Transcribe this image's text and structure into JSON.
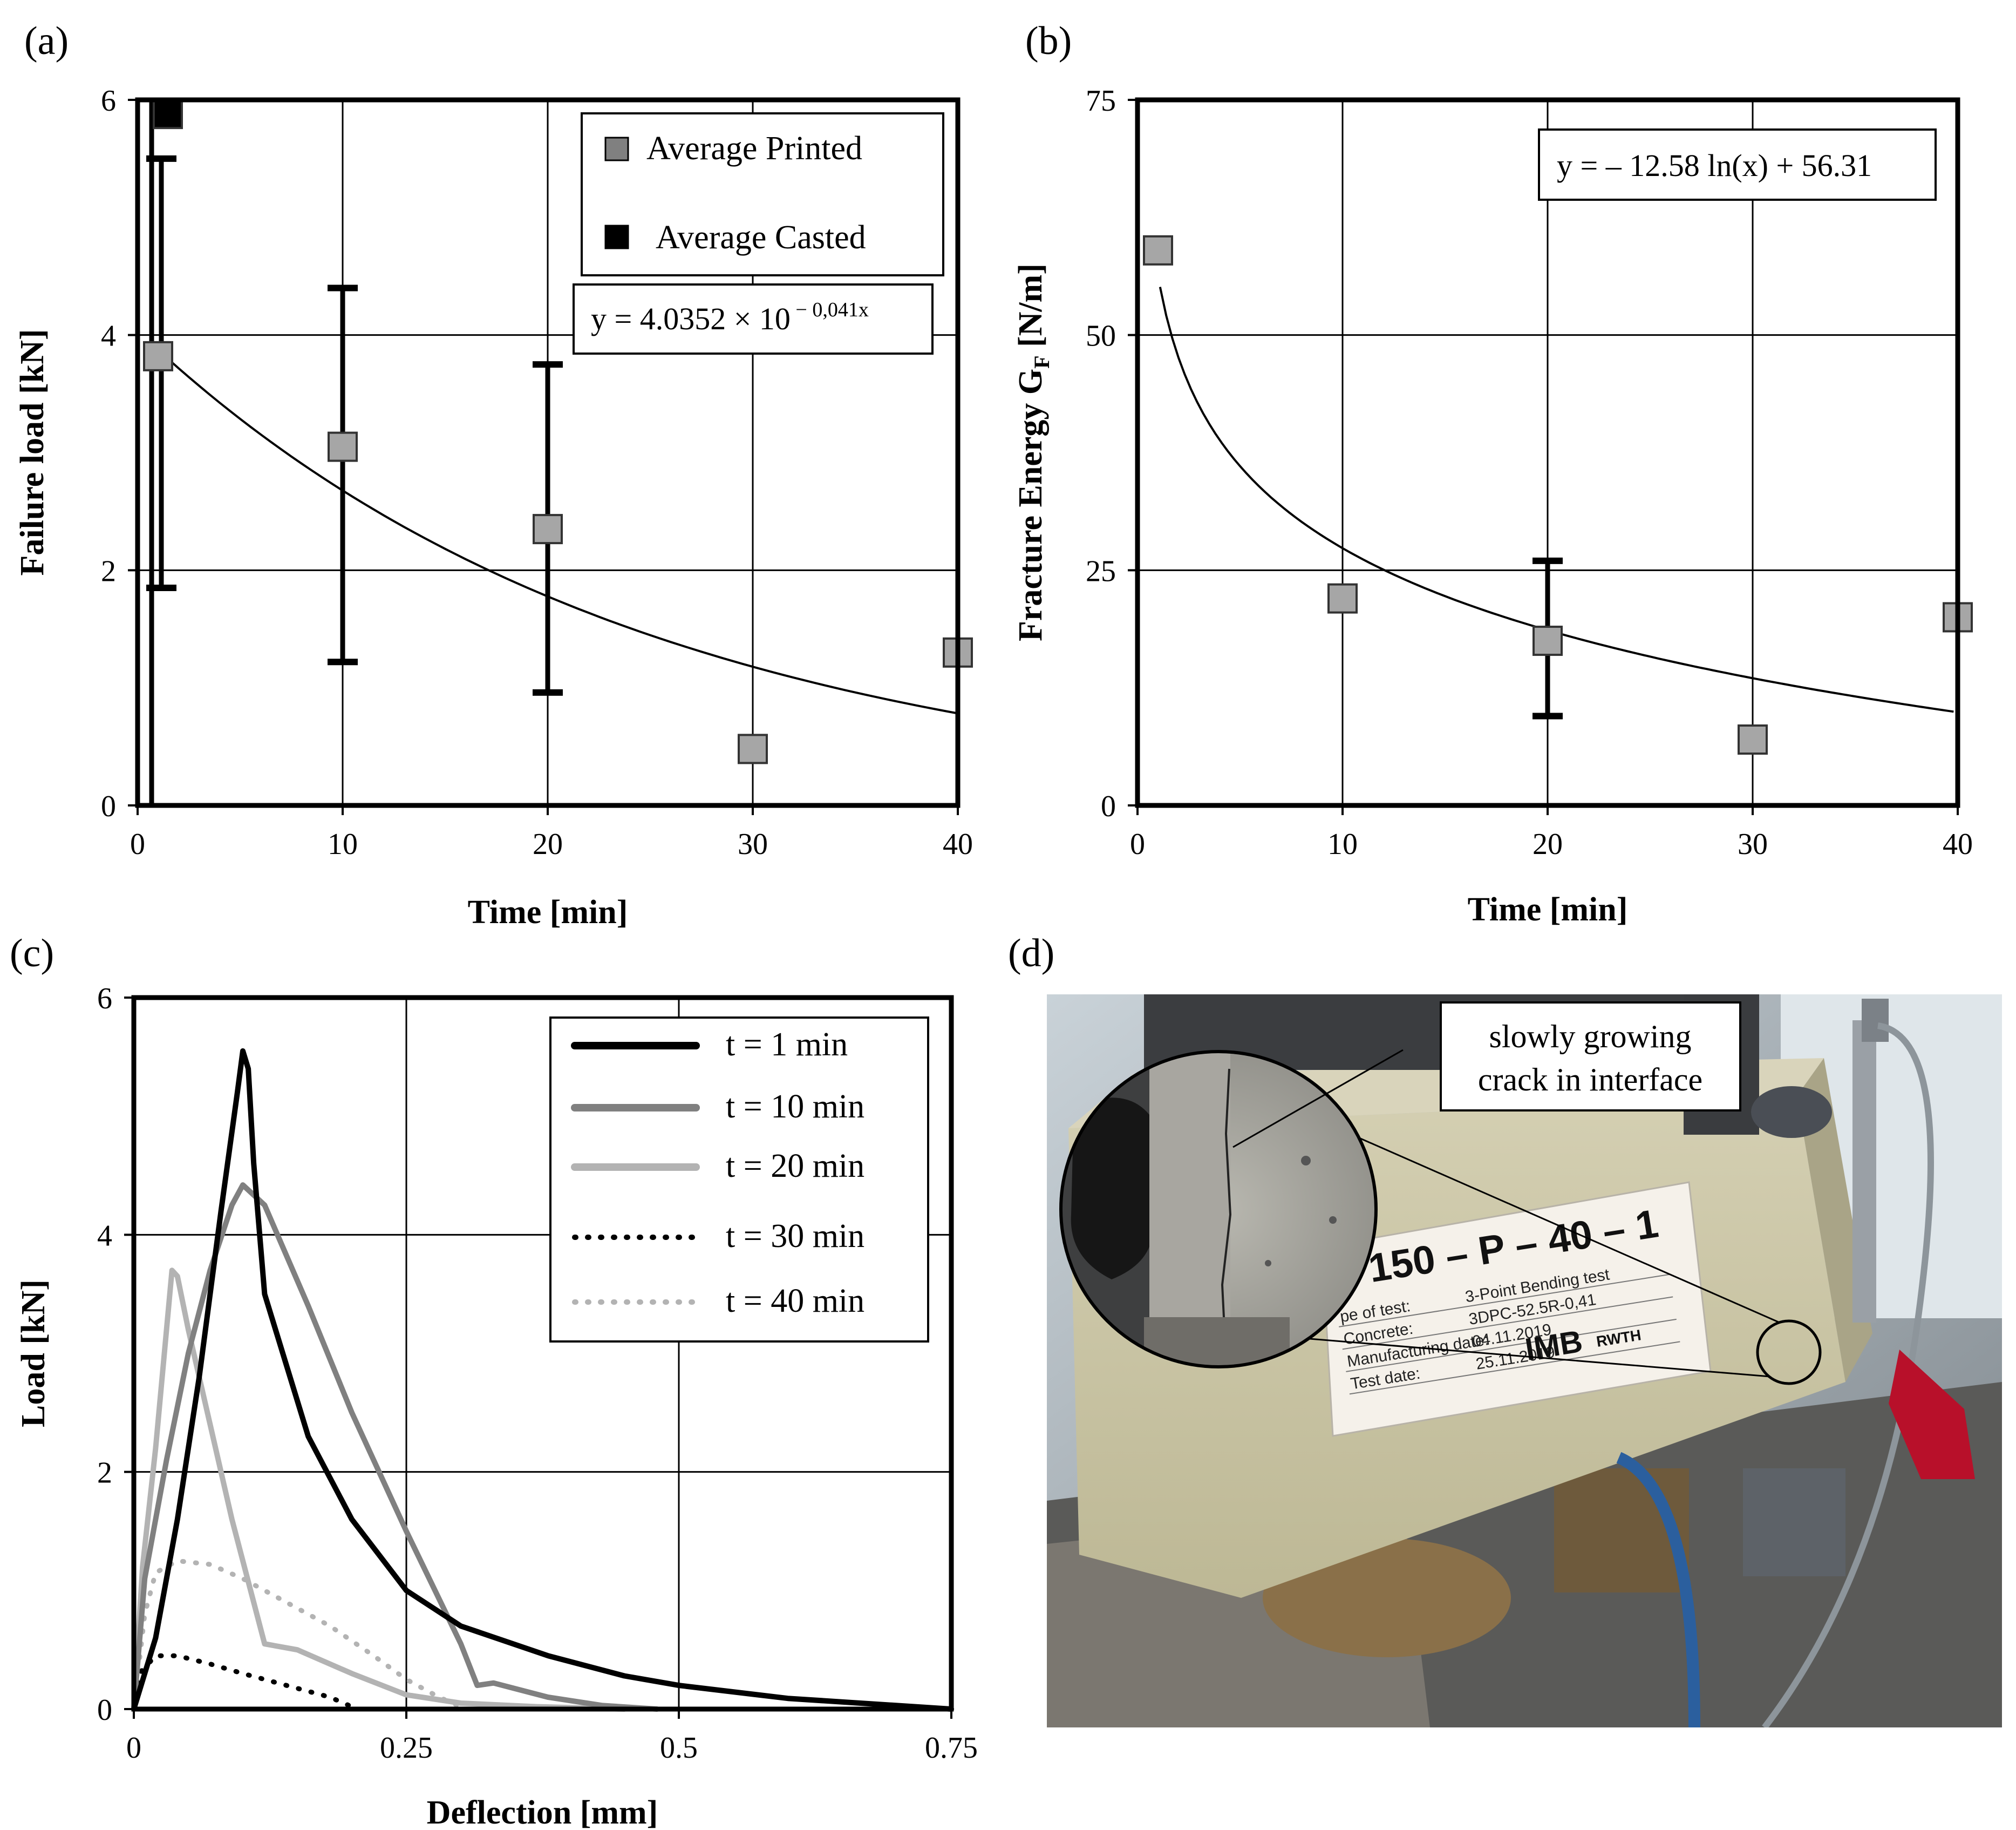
{
  "panel_labels": [
    "(a)",
    "(b)",
    "(c)",
    "(d)"
  ],
  "chart_data": [
    {
      "panel": "(a)",
      "type": "scatter",
      "xlabel": "Time [min]",
      "ylabel": "Failure load [kN]",
      "xlim": [
        0,
        40
      ],
      "ylim": [
        0,
        6
      ],
      "xticks": [
        "0",
        "10",
        "20",
        "30",
        "40"
      ],
      "yticks": [
        "0",
        "2",
        "4",
        "6"
      ],
      "grid": true,
      "legend_placement": "top-right",
      "series": [
        {
          "name": "Average Printed",
          "marker": "square",
          "color": "#a6a6a6",
          "points": [
            {
              "x": 1,
              "y": 3.82,
              "err_low": 1.85,
              "err_high": 5.5
            },
            {
              "x": 10,
              "y": 3.05,
              "err_low": 1.22,
              "err_high": 4.4
            },
            {
              "x": 20,
              "y": 2.35,
              "err_low": 0.96,
              "err_high": 3.75
            },
            {
              "x": 30,
              "y": 0.48
            },
            {
              "x": 40,
              "y": 1.3
            }
          ]
        },
        {
          "name": "Average Casted",
          "marker": "square",
          "color": "#000000",
          "points": [
            {
              "x": 1,
              "y": 5.88,
              "err_low": 0.0,
              "err_high": 6.0
            }
          ]
        }
      ],
      "trendline": {
        "equation_main": "y = 4.0352 × 10",
        "equation_exp": " − 0,041x",
        "a": 4.0352,
        "b": 0.041
      }
    },
    {
      "panel": "(b)",
      "type": "scatter",
      "xlabel": "Time [min]",
      "ylabel": "Fracture Energy G",
      "ylabel_sub": "F",
      "ylabel_unit": " [N/m]",
      "xlim": [
        0,
        40
      ],
      "ylim": [
        0,
        75
      ],
      "xticks": [
        "0",
        "10",
        "20",
        "30",
        "40"
      ],
      "yticks": [
        "0",
        "25",
        "50",
        "75"
      ],
      "grid": true,
      "series": [
        {
          "marker": "square",
          "color": "#a6a6a6",
          "points": [
            {
              "x": 1,
              "y": 59
            },
            {
              "x": 10,
              "y": 22
            },
            {
              "x": 20,
              "y": 17.5,
              "err_low": 9.5,
              "err_high": 26
            },
            {
              "x": 30,
              "y": 7
            },
            {
              "x": 40,
              "y": 20
            }
          ]
        }
      ],
      "trendline": {
        "equation": "y = – 12.58 ln(x) + 56.31",
        "a": -12.58,
        "b": 56.31
      }
    },
    {
      "panel": "(c)",
      "type": "line",
      "xlabel": "Deflection [mm]",
      "ylabel": "Load [kN]",
      "xlim": [
        0,
        0.75
      ],
      "ylim": [
        0,
        6
      ],
      "xticks": [
        "0",
        "0.25",
        "0.5",
        "0.75"
      ],
      "yticks": [
        "0",
        "2",
        "4",
        "6"
      ],
      "grid": true,
      "legend_placement": "top-right",
      "series": [
        {
          "name": "t = 1 min",
          "color": "#000000",
          "style": "solid",
          "points": [
            [
              0,
              0
            ],
            [
              0.02,
              0.6
            ],
            [
              0.04,
              1.6
            ],
            [
              0.06,
              2.8
            ],
            [
              0.08,
              4.2
            ],
            [
              0.095,
              5.2
            ],
            [
              0.1,
              5.55
            ],
            [
              0.105,
              5.4
            ],
            [
              0.11,
              4.6
            ],
            [
              0.12,
              3.5
            ],
            [
              0.14,
              2.9
            ],
            [
              0.16,
              2.3
            ],
            [
              0.2,
              1.6
            ],
            [
              0.25,
              1.0
            ],
            [
              0.3,
              0.7
            ],
            [
              0.38,
              0.45
            ],
            [
              0.45,
              0.28
            ],
            [
              0.5,
              0.2
            ],
            [
              0.6,
              0.09
            ],
            [
              0.7,
              0.03
            ],
            [
              0.75,
              0.0
            ]
          ]
        },
        {
          "name": "t = 10 min",
          "color": "#808080",
          "style": "solid",
          "points": [
            [
              0,
              0
            ],
            [
              0.01,
              1.1
            ],
            [
              0.03,
              2.1
            ],
            [
              0.05,
              3.0
            ],
            [
              0.07,
              3.7
            ],
            [
              0.09,
              4.25
            ],
            [
              0.1,
              4.42
            ],
            [
              0.12,
              4.25
            ],
            [
              0.16,
              3.4
            ],
            [
              0.2,
              2.5
            ],
            [
              0.25,
              1.5
            ],
            [
              0.3,
              0.55
            ],
            [
              0.315,
              0.2
            ],
            [
              0.33,
              0.22
            ],
            [
              0.38,
              0.1
            ],
            [
              0.43,
              0.03
            ],
            [
              0.48,
              0.0
            ]
          ]
        },
        {
          "name": "t = 20 min",
          "color": "#b3b3b3",
          "style": "solid",
          "points": [
            [
              0,
              0
            ],
            [
              0.008,
              1.2
            ],
            [
              0.02,
              2.2
            ],
            [
              0.03,
              3.2
            ],
            [
              0.035,
              3.7
            ],
            [
              0.04,
              3.65
            ],
            [
              0.05,
              3.2
            ],
            [
              0.07,
              2.4
            ],
            [
              0.09,
              1.6
            ],
            [
              0.11,
              0.9
            ],
            [
              0.12,
              0.55
            ],
            [
              0.15,
              0.5
            ],
            [
              0.2,
              0.3
            ],
            [
              0.25,
              0.12
            ],
            [
              0.3,
              0.05
            ],
            [
              0.37,
              0.02
            ],
            [
              0.45,
              0.0
            ]
          ]
        },
        {
          "name": "t = 30 min",
          "color": "#000000",
          "style": "dotted",
          "points": [
            [
              0,
              0
            ],
            [
              0.005,
              0.3
            ],
            [
              0.02,
              0.45
            ],
            [
              0.04,
              0.45
            ],
            [
              0.07,
              0.38
            ],
            [
              0.1,
              0.3
            ],
            [
              0.14,
              0.2
            ],
            [
              0.18,
              0.1
            ],
            [
              0.2,
              0.02
            ]
          ]
        },
        {
          "name": "t = 40 min",
          "color": "#b3b3b3",
          "style": "dotted",
          "points": [
            [
              0,
              0
            ],
            [
              0.01,
              0.8
            ],
            [
              0.02,
              1.15
            ],
            [
              0.04,
              1.25
            ],
            [
              0.07,
              1.22
            ],
            [
              0.1,
              1.1
            ],
            [
              0.14,
              0.9
            ],
            [
              0.18,
              0.7
            ],
            [
              0.22,
              0.45
            ],
            [
              0.25,
              0.25
            ],
            [
              0.28,
              0.1
            ],
            [
              0.3,
              0.02
            ]
          ]
        }
      ]
    }
  ],
  "photo_d": {
    "annotation_line1": "slowly  growing",
    "annotation_line2": "crack in interface",
    "label_big": "– 150 – P – 40 – 1",
    "label_rows": [
      {
        "key": "pe of test:",
        "val": "3-Point Bending test"
      },
      {
        "key": "Concrete:",
        "val": "3DPC-52.5R-0,41"
      },
      {
        "key": "Manufacturing date:",
        "val": "04.11.2019"
      },
      {
        "key": "Test date:",
        "val": "25.11.2019"
      }
    ],
    "logo_imb": "IMB",
    "logo_rwth": "RWTH"
  }
}
